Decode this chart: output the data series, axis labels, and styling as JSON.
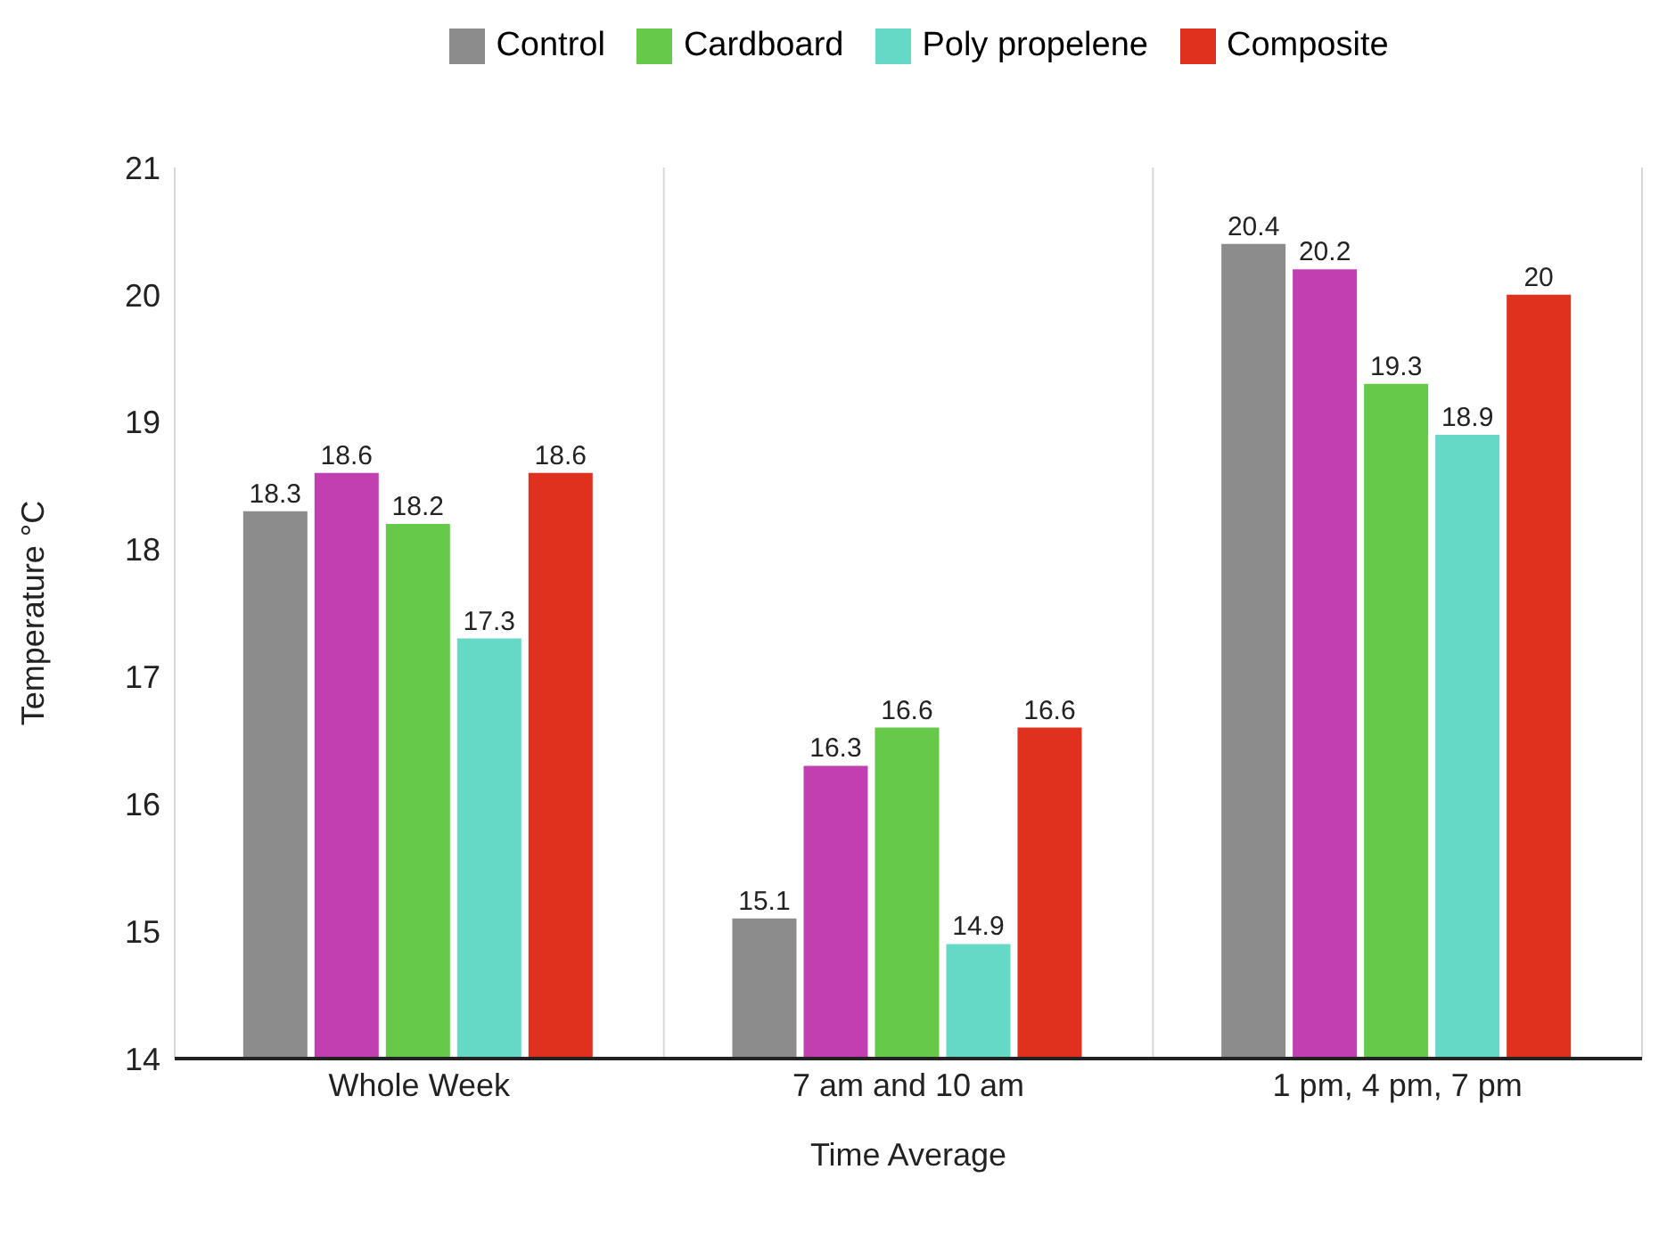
{
  "chart_data": {
    "type": "bar",
    "xlabel": "Time Average",
    "ylabel": "Temperature °C",
    "categories": [
      "Whole Week",
      "7 am and 10 am",
      "1 pm, 4 pm, 7 pm"
    ],
    "series": [
      {
        "name": "Control",
        "color": "#8c8c8c",
        "values": [
          18.3,
          15.1,
          20.4
        ]
      },
      {
        "color": "#c23fb2",
        "values": [
          18.6,
          16.3,
          20.2
        ]
      },
      {
        "name": "Cardboard",
        "color": "#66c94a",
        "values": [
          18.2,
          16.6,
          19.3
        ]
      },
      {
        "name": "Poly propelene",
        "color": "#66d8c6",
        "values": [
          17.3,
          14.9,
          18.9
        ]
      },
      {
        "name": "Composite",
        "color": "#e0301e",
        "values": [
          18.6,
          16.6,
          20
        ]
      }
    ],
    "ylim": [
      14,
      21
    ],
    "yticks": [
      14,
      15,
      16,
      17,
      18,
      19,
      20,
      21
    ],
    "grid": "x",
    "legend": "top",
    "data_labels": true
  }
}
